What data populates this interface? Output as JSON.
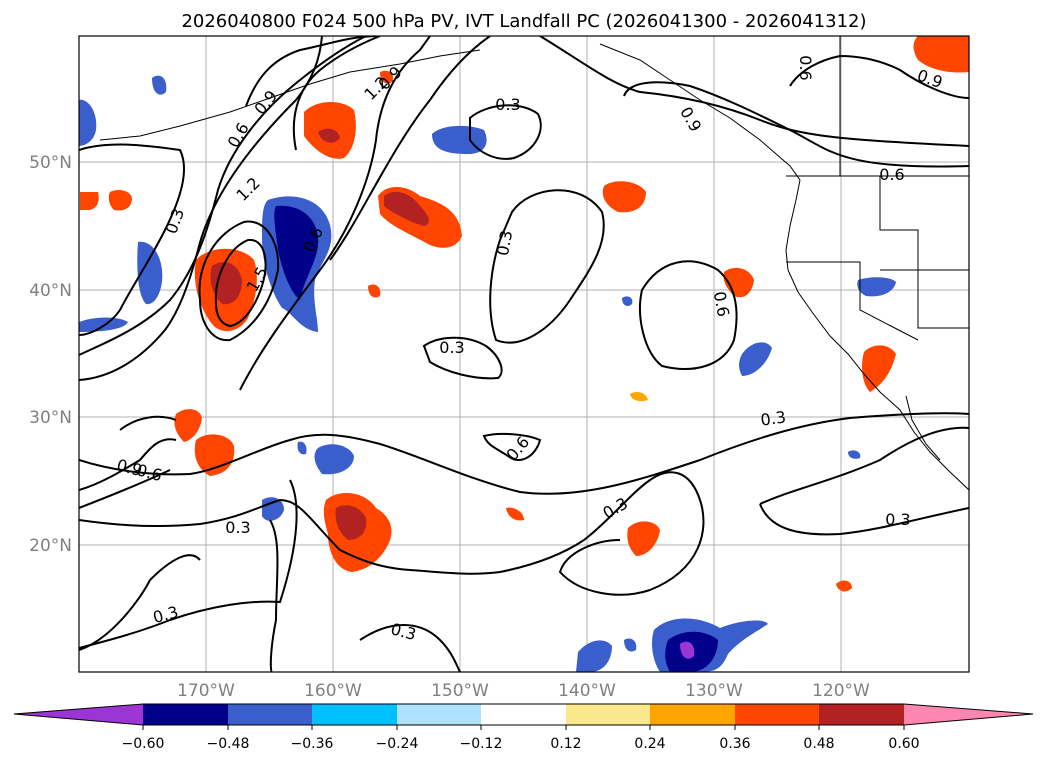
{
  "title": "2026040800 F024 500 hPa PV, IVT Landfall PC (2026041300 - 2026041312)",
  "map": {
    "lon_range": [
      180,
      110
    ],
    "lat_range": [
      10,
      60
    ],
    "lat_labels": [
      "50°N",
      "40°N",
      "30°N",
      "20°N"
    ],
    "lon_labels": [
      "170°W",
      "160°W",
      "150°W",
      "140°W",
      "130°W",
      "120°W"
    ],
    "contour_labels": [
      "0.3",
      "0.3",
      "0.3",
      "0.3",
      "0.3",
      "0.3",
      "0.3",
      "0.3",
      "0.3",
      "0.3",
      "0.6",
      "0.6",
      "0.6",
      "0.6",
      "0.6",
      "0.6",
      "0.6",
      "0.9",
      "0.9",
      "0.9",
      "0.9",
      "0.9",
      "1.2",
      "1.2",
      "1.5"
    ]
  },
  "colorbar": {
    "ticks": [
      "−0.60",
      "−0.48",
      "−0.36",
      "−0.24",
      "−0.12",
      "0.12",
      "0.24",
      "0.36",
      "0.48",
      "0.60"
    ],
    "colors": [
      "#9b35d4",
      "#00008b",
      "#3a5fcd",
      "#00bfff",
      "#b0e2ff",
      "#ffffff",
      "#fbe88c",
      "#ffa500",
      "#ff4500",
      "#b22222",
      "#ff86b0"
    ]
  },
  "chart_data": {
    "type": "contour-map",
    "title": "2026040800 F024 500 hPa PV, IVT Landfall PC (2026041300 - 2026041312)",
    "contour_levels": [
      0.3,
      0.6,
      0.9,
      1.2,
      1.5
    ],
    "fill_levels": [
      -0.6,
      -0.48,
      -0.36,
      -0.24,
      -0.12,
      0.12,
      0.24,
      0.36,
      0.48,
      0.6
    ],
    "extent": {
      "lon_west": -180,
      "lon_east": -110,
      "lat_south": 10,
      "lat_north": 60
    }
  }
}
